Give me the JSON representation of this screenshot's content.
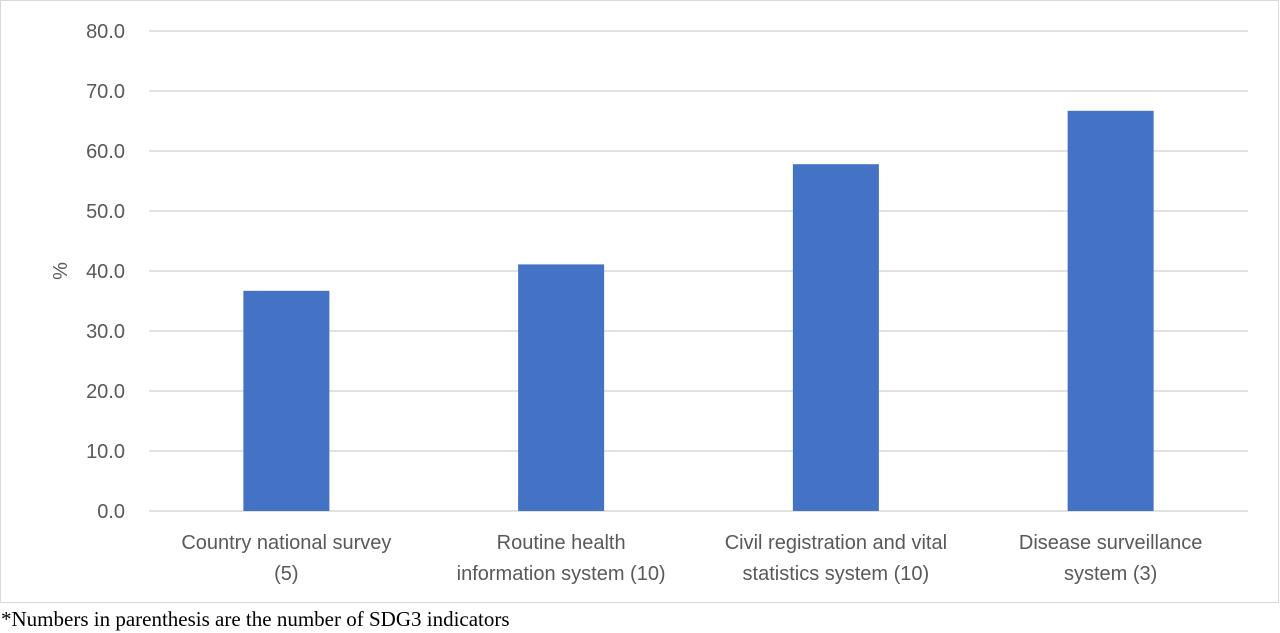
{
  "chart_data": {
    "type": "bar",
    "categories": [
      [
        "Country national survey",
        "(5)"
      ],
      [
        "Routine health",
        "information system (10)"
      ],
      [
        "Civil registration and vital",
        "statistics system (10)"
      ],
      [
        "Disease surveillance",
        "system (3)"
      ]
    ],
    "values": [
      36.7,
      41.1,
      57.8,
      66.7
    ],
    "ylabel": "%",
    "xlabel": "",
    "ylim": [
      0,
      80
    ],
    "yticks": [
      0,
      10,
      20,
      30,
      40,
      50,
      60,
      70,
      80
    ],
    "ytick_labels": [
      "0.0",
      "10.0",
      "20.0",
      "30.0",
      "40.0",
      "50.0",
      "60.0",
      "70.0",
      "80.0"
    ],
    "grid": true,
    "legend": "none",
    "bar_color": "#4472C4"
  },
  "footnote": "*Numbers in parenthesis are the number of SDG3 indicators"
}
